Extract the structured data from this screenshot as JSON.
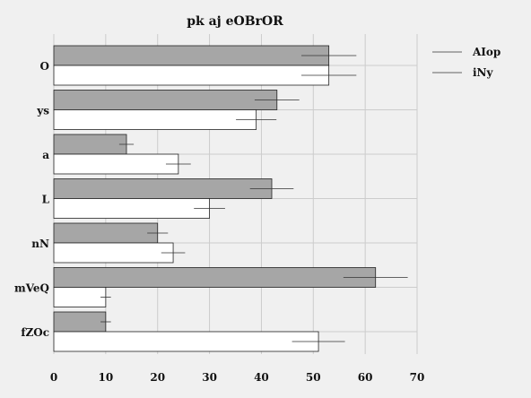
{
  "chart_data": {
    "type": "bar",
    "orientation": "horizontal",
    "title": "pk aj eOBrOR",
    "xlabel": "",
    "ylabel": "",
    "categories": [
      "O",
      "ys",
      "a",
      "L",
      "nN",
      "mVeQ",
      "fZOc"
    ],
    "xlim": [
      0,
      70
    ],
    "xticks": [
      0,
      10,
      20,
      30,
      40,
      50,
      60,
      70
    ],
    "grid": true,
    "legend_position": "top-right",
    "series": [
      {
        "name": "AIop",
        "color": "#a6a6a6",
        "values": [
          53,
          43,
          14,
          42,
          20,
          62,
          10
        ],
        "errors": [
          5.3,
          4.3,
          1.4,
          4.2,
          2.0,
          6.2,
          1.0
        ]
      },
      {
        "name": "iNy",
        "color": "#ffffff",
        "values": [
          53,
          39,
          24,
          30,
          23,
          10,
          51
        ],
        "errors": [
          5.3,
          3.9,
          2.4,
          3.0,
          2.3,
          1.0,
          5.1
        ]
      }
    ]
  }
}
